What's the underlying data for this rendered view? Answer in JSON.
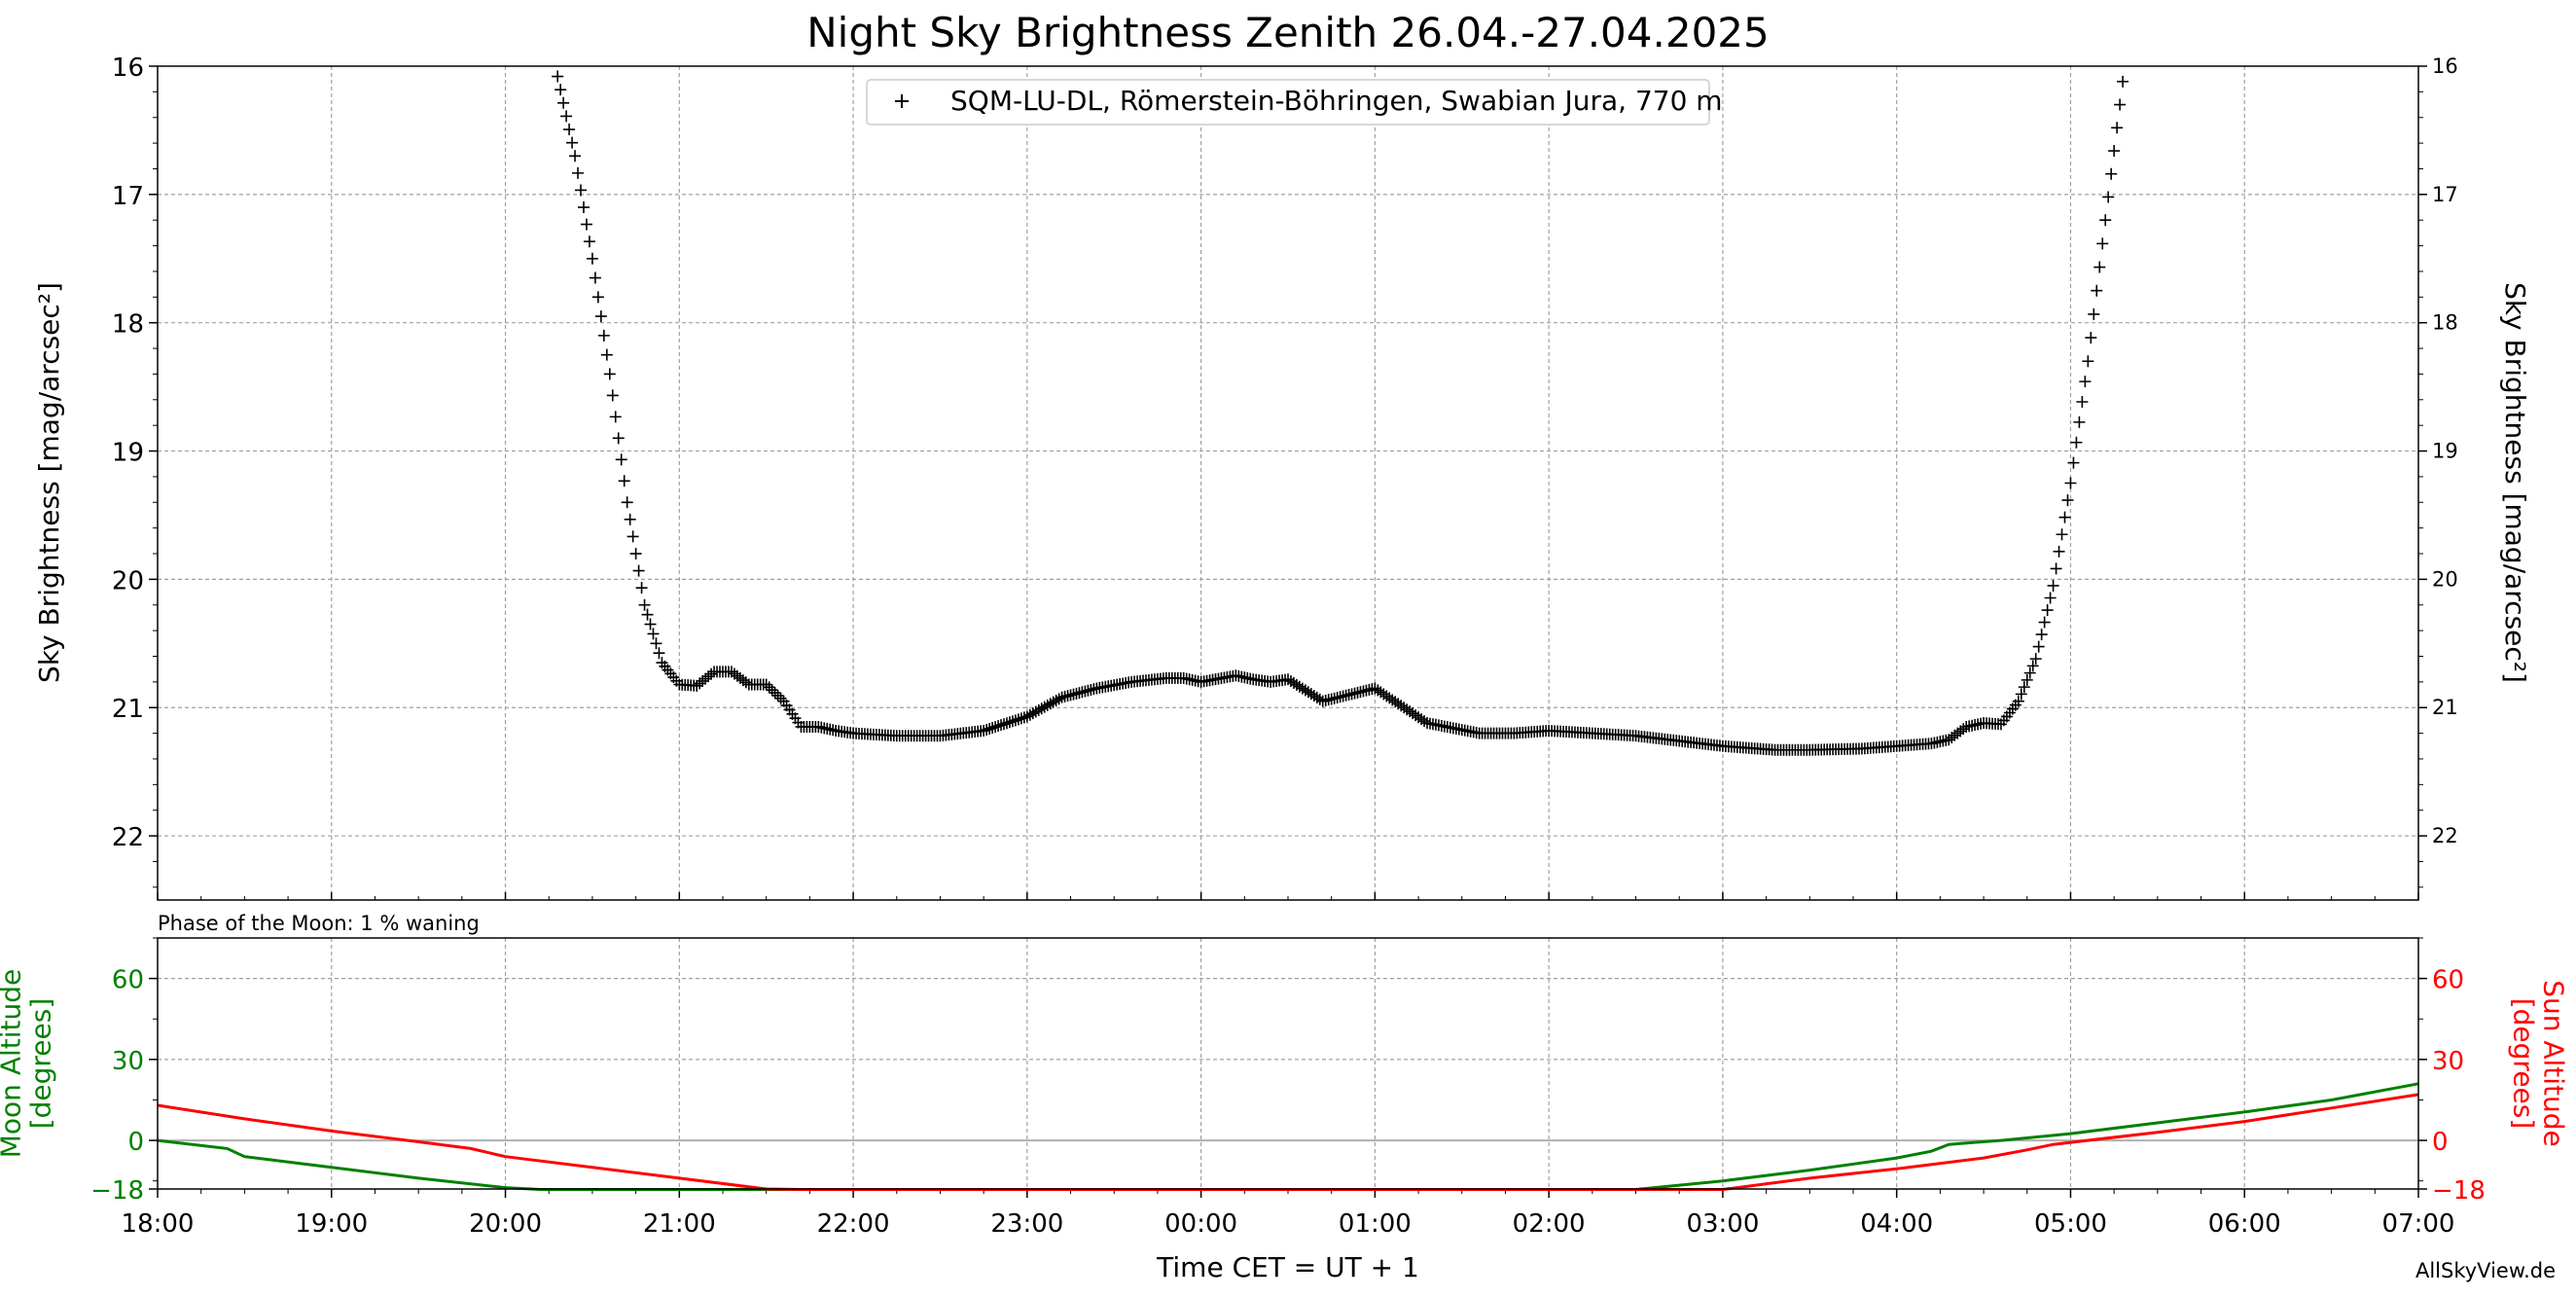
{
  "chart_data": [
    {
      "type": "scatter",
      "title": "Night Sky Brightness Zenith 26.04.-27.04.2025",
      "ylabel": "Sky Brightness [mag/arcsec²]",
      "ylabel_right": "Sky Brightness [mag/arcsec²]",
      "ylim": [
        22.5,
        16
      ],
      "yticks": [
        "16",
        "17",
        "18",
        "19",
        "20",
        "21",
        "22"
      ],
      "xlim": [
        18,
        31
      ],
      "grid": true,
      "legend_position": "top-center",
      "series": [
        {
          "name": "SQM-LU-DL, Römerstein-Böhringen, Swabian Jura, 770 m",
          "marker": "+",
          "color": "#000000",
          "x": [
            20.3,
            20.4,
            20.5,
            20.6,
            20.7,
            20.8,
            20.9,
            21.0,
            21.1,
            21.2,
            21.3,
            21.4,
            21.5,
            21.6,
            21.7,
            21.8,
            21.9,
            22.0,
            22.25,
            22.5,
            22.75,
            23.0,
            23.2,
            23.4,
            23.6,
            23.8,
            23.9,
            24.0,
            24.2,
            24.3,
            24.4,
            24.5,
            24.7,
            25.0,
            25.3,
            25.6,
            25.8,
            26.0,
            26.5,
            27.0,
            27.3,
            27.5,
            27.8,
            28.0,
            28.2,
            28.3,
            28.4,
            28.5,
            28.6,
            28.7,
            28.8,
            28.9,
            29.0,
            29.1,
            29.2,
            29.3
          ],
          "y": [
            16.08,
            16.7,
            17.5,
            18.4,
            19.4,
            20.2,
            20.65,
            20.82,
            20.83,
            20.72,
            20.72,
            20.82,
            20.82,
            20.95,
            21.15,
            21.15,
            21.18,
            21.2,
            21.22,
            21.22,
            21.18,
            21.07,
            20.92,
            20.85,
            20.8,
            20.77,
            20.77,
            20.8,
            20.75,
            20.78,
            20.8,
            20.78,
            20.95,
            20.85,
            21.12,
            21.2,
            21.2,
            21.18,
            21.22,
            21.3,
            21.33,
            21.33,
            21.32,
            21.3,
            21.28,
            21.25,
            21.15,
            21.12,
            21.13,
            20.95,
            20.62,
            20.05,
            19.25,
            18.3,
            17.2,
            16.12
          ]
        }
      ]
    },
    {
      "type": "line",
      "subtitle": "Phase of the Moon: 1 % waning",
      "xlabel": "Time CET = UT + 1",
      "ylabel": "Moon Altitude\n[degrees]",
      "ylabel_right": "Sun Altitude\n[degrees]",
      "ylim": [
        -18,
        75
      ],
      "yticks": [
        "60",
        "30",
        "0",
        "−18"
      ],
      "xlim": [
        18,
        31
      ],
      "xticks": [
        "18:00",
        "19:00",
        "20:00",
        "21:00",
        "22:00",
        "23:00",
        "00:00",
        "01:00",
        "02:00",
        "03:00",
        "04:00",
        "05:00",
        "06:00",
        "07:00"
      ],
      "grid": true,
      "series": [
        {
          "name": "Moon Altitude",
          "color": "#008000",
          "x": [
            18.0,
            18.4,
            18.5,
            19.0,
            19.5,
            20.0,
            20.2,
            26.5,
            27.0,
            27.5,
            28.0,
            28.2,
            28.3,
            28.6,
            29.0,
            29.5,
            30.0,
            30.5,
            31.0
          ],
          "y": [
            0,
            -3,
            -6,
            -10,
            -14,
            -17.5,
            -19,
            -19,
            -15,
            -11,
            -6.5,
            -4,
            -1.5,
            0,
            2.5,
            6.5,
            10.5,
            15,
            21
          ]
        },
        {
          "name": "Sun Altitude",
          "color": "#ff0000",
          "x": [
            18.0,
            18.5,
            19.0,
            19.5,
            19.8,
            20.0,
            20.5,
            21.0,
            21.5,
            21.7,
            27.0,
            27.5,
            28.0,
            28.5,
            28.75,
            28.9,
            29.5,
            30.0,
            30.5,
            31.0
          ],
          "y": [
            13,
            8,
            3.5,
            -0.5,
            -3,
            -6,
            -10,
            -14,
            -18,
            -19,
            -19,
            -14,
            -10.5,
            -6.5,
            -3.5,
            -1.5,
            3,
            7,
            12,
            17
          ]
        }
      ]
    }
  ],
  "colors": {
    "moon": "#008000",
    "sun": "#ff0000",
    "grid": "#a0a0a0",
    "zero_line": "#b0b0b0"
  },
  "credit": "AllSkyView.de"
}
